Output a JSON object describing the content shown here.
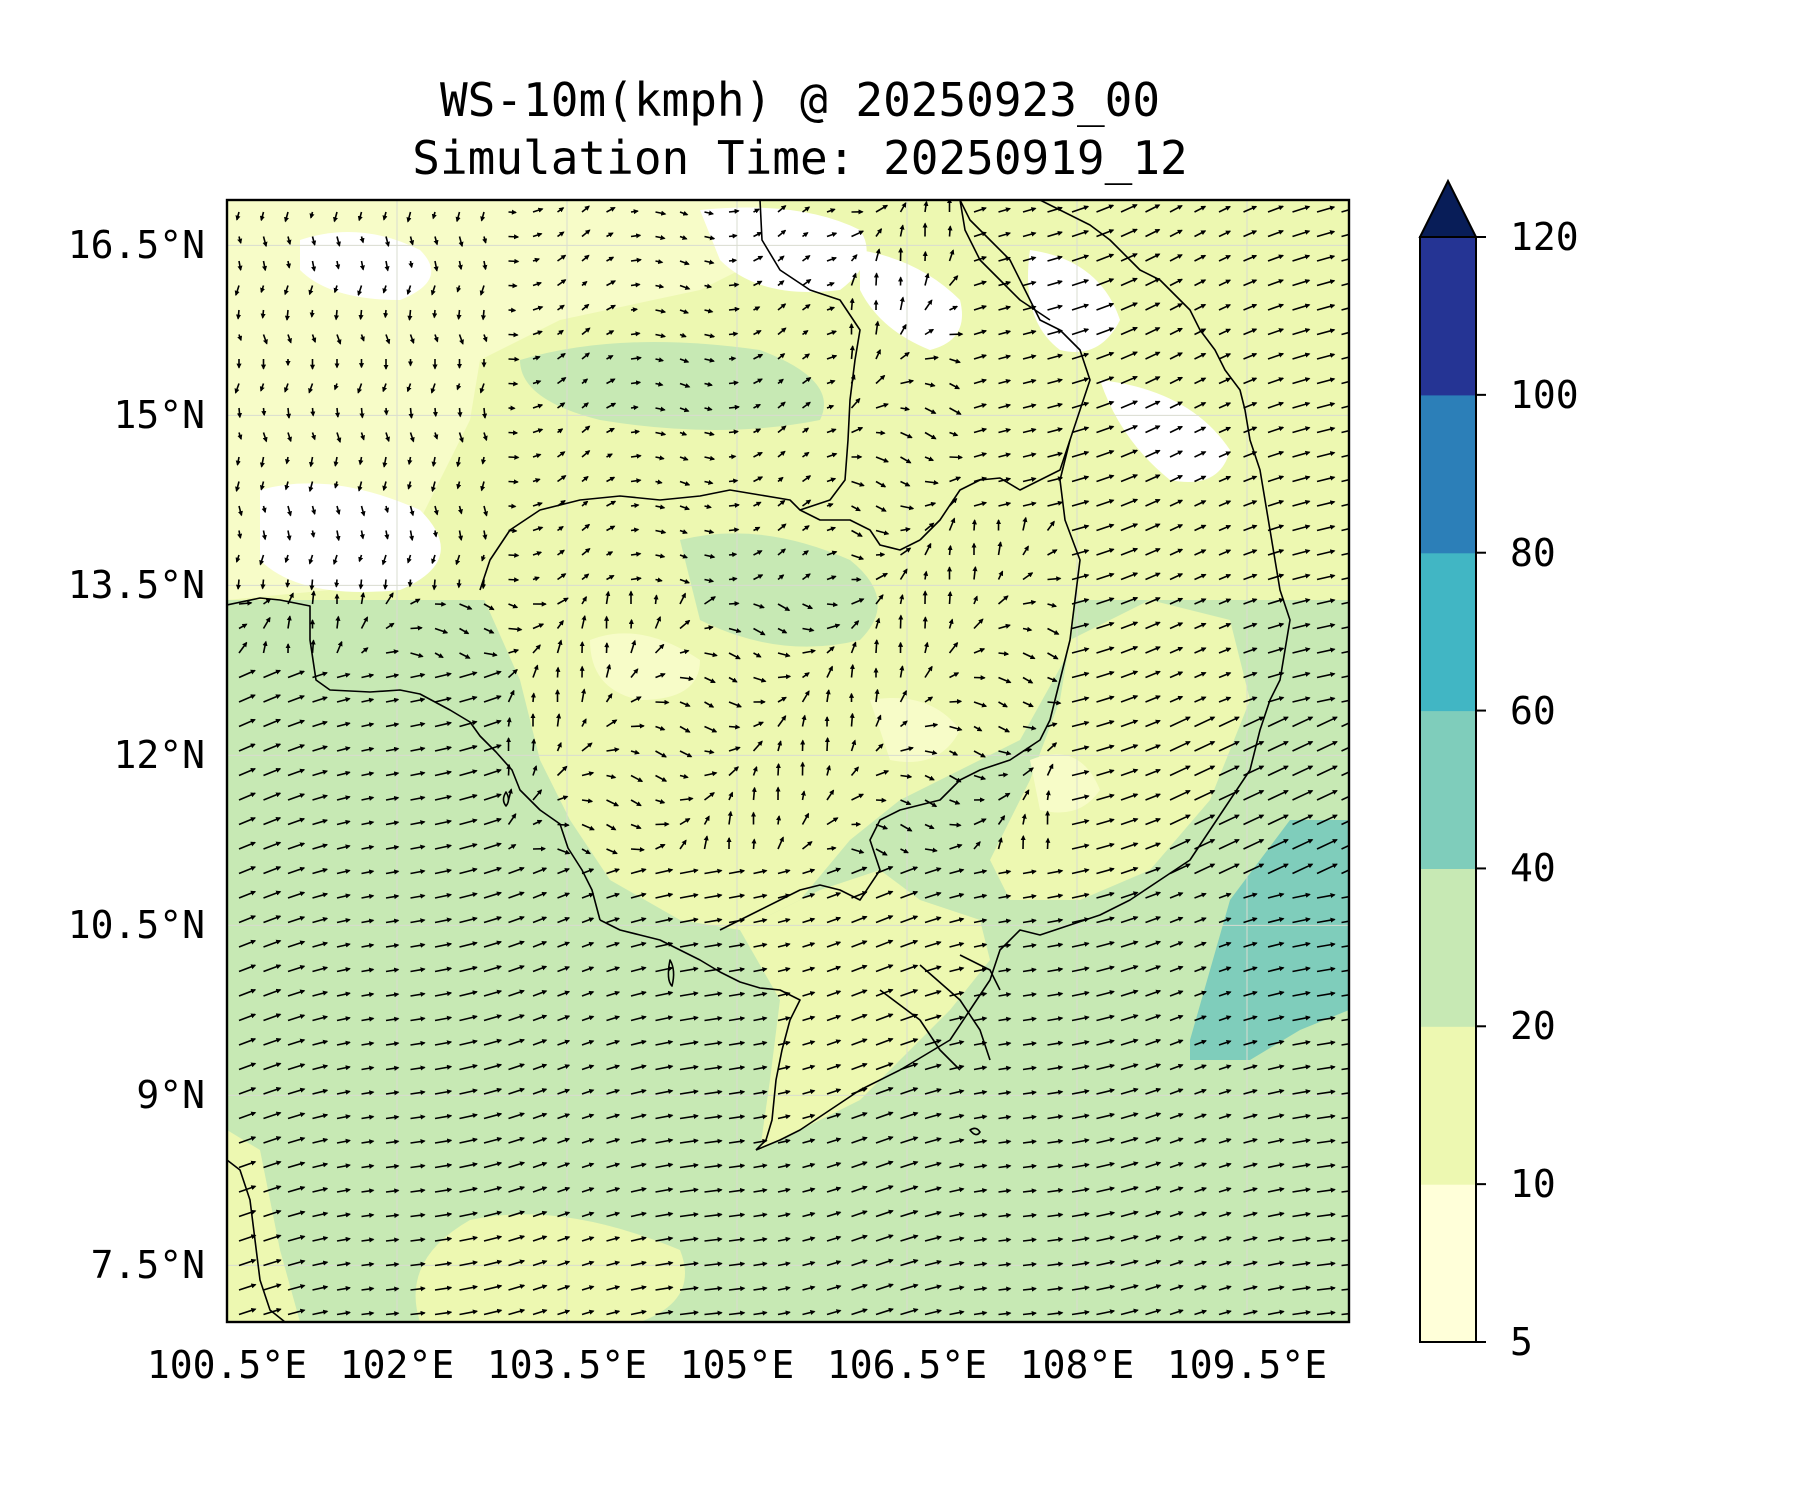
{
  "title": {
    "line1": "WS-10m(kmph) @ 20250923_00",
    "line2": "Simulation Time: 20250919_12"
  },
  "map": {
    "lat_ticks": [
      "16.5°N",
      "15°N",
      "13.5°N",
      "12°N",
      "10.5°N",
      "9°N",
      "7.5°N"
    ],
    "lon_ticks": [
      "100.5°E",
      "102°E",
      "103.5°E",
      "105°E",
      "106.5°E",
      "108°E",
      "109.5°E"
    ],
    "lat_values": [
      16.5,
      15,
      13.5,
      12,
      10.5,
      9,
      7.5
    ],
    "lon_values": [
      100.5,
      102,
      103.5,
      105,
      106.5,
      108,
      109.5
    ],
    "extent": {
      "lon_min": 100.5,
      "lon_max": 110.4,
      "lat_min": 7.0,
      "lat_max": 16.9
    },
    "field": "10 m wind speed (km/h) with wind direction vectors",
    "wind_regime": "southwest monsoon: strong WSW flow over Gulf of Thailand and South China Sea, weak variable winds over inland Thailand and Cambodia, 40-60 km/h core off southern Vietnam coast"
  },
  "colorbar": {
    "levels": [
      5,
      10,
      20,
      40,
      60,
      80,
      100,
      120
    ],
    "labels": [
      "5",
      "10",
      "20",
      "40",
      "60",
      "80",
      "100",
      "120"
    ],
    "colors": [
      "#ffffd9",
      "#edf8b1",
      "#c7e9b4",
      "#7fcdbb",
      "#41b6c4",
      "#2c7fb8",
      "#253494",
      "#081d58"
    ],
    "extend": "max"
  }
}
